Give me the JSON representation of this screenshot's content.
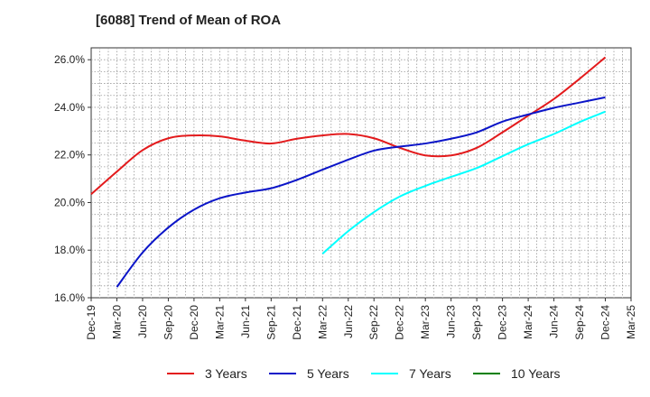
{
  "title": "[6088]  Trend of Mean of ROA",
  "chart_data": {
    "type": "line",
    "title": "[6088]  Trend of Mean of ROA",
    "xlabel": "",
    "ylabel": "",
    "x_ticks": [
      "Dec-19",
      "Mar-20",
      "Jun-20",
      "Sep-20",
      "Dec-20",
      "Mar-21",
      "Jun-21",
      "Sep-21",
      "Dec-21",
      "Mar-22",
      "Jun-22",
      "Sep-22",
      "Dec-22",
      "Mar-23",
      "Jun-23",
      "Sep-23",
      "Dec-23",
      "Mar-24",
      "Jun-24",
      "Sep-24",
      "Dec-24",
      "Mar-25"
    ],
    "y_ticks": [
      "16.0%",
      "18.0%",
      "20.0%",
      "22.0%",
      "24.0%",
      "26.0%"
    ],
    "ylim": [
      16,
      26.5
    ],
    "grid": true,
    "legend_position": "bottom",
    "series": [
      {
        "name": "3 Years",
        "color": "#e31a1c",
        "start_index": 0,
        "values": [
          20.35,
          21.3,
          22.2,
          22.7,
          22.82,
          22.78,
          22.6,
          22.48,
          22.68,
          22.82,
          22.88,
          22.7,
          22.3,
          21.98,
          21.98,
          22.3,
          22.95,
          23.65,
          24.35,
          25.2,
          26.1
        ]
      },
      {
        "name": "5 Years",
        "color": "#0a14c8",
        "start_index": 1,
        "values": [
          16.45,
          17.9,
          18.95,
          19.7,
          20.18,
          20.42,
          20.6,
          20.95,
          21.38,
          21.8,
          22.18,
          22.35,
          22.48,
          22.68,
          22.95,
          23.4,
          23.7,
          23.98,
          24.2,
          24.42
        ]
      },
      {
        "name": "7 Years",
        "color": "#00ffff",
        "start_index": 9,
        "values": [
          17.85,
          18.8,
          19.6,
          20.25,
          20.7,
          21.08,
          21.45,
          21.95,
          22.45,
          22.88,
          23.38,
          23.82
        ]
      },
      {
        "name": "10 Years",
        "color": "#008000",
        "start_index": 0,
        "values": []
      }
    ]
  }
}
